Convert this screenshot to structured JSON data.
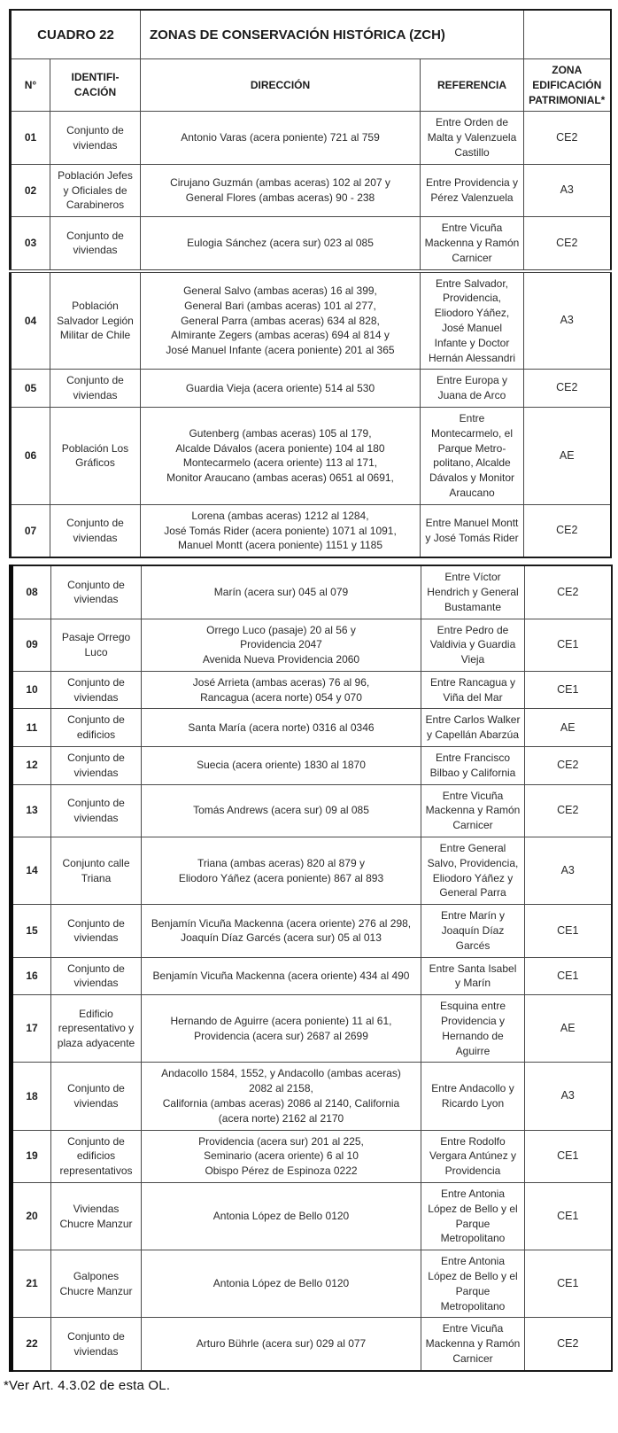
{
  "document": {
    "table_label": "CUADRO 22",
    "title": "ZONAS DE CONSERVACIÓN HISTÓRICA (ZCH)",
    "footnote": "*Ver Art. 4.3.02 de esta OL."
  },
  "colors": {
    "paper": "#ffffff",
    "ink": "#262626",
    "rule": "#4a4a4a"
  },
  "table": {
    "headers": {
      "num": "N°",
      "identificacion": "IDENTIFI-\nCACIÓN",
      "direccion": "DIRECCIÓN",
      "referencia": "REFERENCIA",
      "zona": "ZONA\nEDIFICACIÓN\nPATRIMONIAL*"
    },
    "rows": [
      {
        "num": "01",
        "identificacion": "Conjunto de viviendas",
        "direccion": "Antonio Varas (acera poniente) 721 al 759",
        "referencia": "Entre Orden de Malta y Valenzuela Castillo",
        "zona": "CE2"
      },
      {
        "num": "02",
        "identificacion": "Población Jefes y Oficiales de Carabineros",
        "direccion": "Cirujano Guzmán (ambas aceras) 102 al 207 y\nGeneral Flores (ambas aceras) 90 - 238",
        "referencia": "Entre Providencia y Pérez Valenzuela",
        "zona": "A3"
      },
      {
        "num": "03",
        "identificacion": "Conjunto de viviendas",
        "direccion": "Eulogia Sánchez (acera sur) 023 al 085",
        "referencia": "Entre Vicuña Mackenna y Ramón Carnicer",
        "zona": "CE2"
      },
      {
        "num": "04",
        "identificacion": "Población Salvador Legión Militar de Chile",
        "direccion": "General Salvo (ambas aceras) 16 al 399,\nGeneral Bari (ambas aceras) 101 al 277,\nGeneral Parra (ambas aceras) 634 al 828,\nAlmirante Zegers (ambas aceras) 694 al 814 y\nJosé Manuel Infante (acera poniente) 201 al 365",
        "referencia": "Entre Salvador, Providencia, Eliodoro Yáñez, José Manuel Infante y Doctor Hernán Alessandri",
        "zona": "A3"
      },
      {
        "num": "05",
        "identificacion": "Conjunto de viviendas",
        "direccion": "Guardia Vieja (acera oriente) 514 al 530",
        "referencia": "Entre Europa y Juana de Arco",
        "zona": "CE2"
      },
      {
        "num": "06",
        "identificacion": "Población Los Gráficos",
        "direccion": "Gutenberg (ambas aceras) 105 al 179,\nAlcalde Dávalos (acera poniente) 104 al 180\nMontecarmelo (acera oriente) 113 al 171,\nMonitor Araucano (ambas aceras) 0651 al 0691,",
        "referencia": "Entre\nMontecarmelo, el\nParque Metro-\npolitano, Alcalde\nDávalos y Monitor\nAraucano",
        "zona": "AE"
      },
      {
        "num": "07",
        "identificacion": "Conjunto de viviendas",
        "direccion": "Lorena (ambas aceras) 1212 al 1284,\nJosé Tomás Rider (acera poniente) 1071 al 1091,\nManuel Montt (acera poniente) 1151 y 1185",
        "referencia": "Entre Manuel Montt y José Tomás Rider",
        "zona": "CE2"
      },
      {
        "num": "08",
        "identificacion": "Conjunto de viviendas",
        "direccion": "Marín (acera sur) 045 al 079",
        "referencia": "Entre Víctor Hendrich y General Bustamante",
        "zona": "CE2"
      },
      {
        "num": "09",
        "identificacion": "Pasaje Orrego Luco",
        "direccion": "Orrego Luco (pasaje) 20 al 56 y\nProvidencia 2047\nAvenida Nueva Providencia 2060",
        "referencia": "Entre Pedro de Valdivia y Guardia Vieja",
        "zona": "CE1"
      },
      {
        "num": "10",
        "identificacion": "Conjunto de viviendas",
        "direccion": "José Arrieta (ambas aceras) 76 al 96,\nRancagua (acera norte) 054 y 070",
        "referencia": "Entre Rancagua y Viña del Mar",
        "zona": "CE1"
      },
      {
        "num": "11",
        "identificacion": "Conjunto de edificios",
        "direccion": "Santa María (acera norte) 0316 al 0346",
        "referencia": "Entre Carlos Walker y Capellán Abarzúa",
        "zona": "AE"
      },
      {
        "num": "12",
        "identificacion": "Conjunto de viviendas",
        "direccion": "Suecia (acera oriente) 1830 al 1870",
        "referencia": "Entre Francisco Bilbao y California",
        "zona": "CE2"
      },
      {
        "num": "13",
        "identificacion": "Conjunto de viviendas",
        "direccion": "Tomás Andrews (acera sur) 09 al 085",
        "referencia": "Entre Vicuña Mackenna y Ramón Carnicer",
        "zona": "CE2"
      },
      {
        "num": "14",
        "identificacion": "Conjunto calle Triana",
        "direccion": "Triana (ambas aceras) 820 al 879 y\nEliodoro Yáñez (acera poniente) 867 al 893",
        "referencia": "Entre General Salvo, Providencia, Eliodoro Yáñez y General Parra",
        "zona": "A3"
      },
      {
        "num": "15",
        "identificacion": "Conjunto de viviendas",
        "direccion": "Benjamín Vicuña Mackenna (acera oriente) 276 al 298,\nJoaquín Díaz Garcés (acera sur) 05 al 013",
        "referencia": "Entre Marín y Joaquín Díaz Garcés",
        "zona": "CE1"
      },
      {
        "num": "16",
        "identificacion": "Conjunto de viviendas",
        "direccion": "Benjamín Vicuña Mackenna (acera oriente) 434 al 490",
        "referencia": "Entre Santa Isabel y Marín",
        "zona": "CE1"
      },
      {
        "num": "17",
        "identificacion": "Edificio representativo y plaza adyacente",
        "direccion": "Hernando de Aguirre (acera poniente) 11 al 61,\nProvidencia (acera sur) 2687 al 2699",
        "referencia": "Esquina entre Providencia y Hernando de Aguirre",
        "zona": "AE"
      },
      {
        "num": "18",
        "identificacion": "Conjunto de viviendas",
        "direccion": "Andacollo 1584, 1552, y Andacollo (ambas aceras)\n2082 al 2158,\nCalifornia (ambas aceras) 2086 al 2140, California\n(acera norte) 2162 al 2170",
        "referencia": "Entre Andacollo y Ricardo Lyon",
        "zona": "A3"
      },
      {
        "num": "19",
        "identificacion": "Conjunto de edificios representativos",
        "direccion": "Providencia (acera sur) 201 al 225,\nSeminario (acera oriente) 6 al 10\nObispo Pérez de Espinoza 0222",
        "referencia": "Entre Rodolfo Vergara Antúnez y Providencia",
        "zona": "CE1"
      },
      {
        "num": "20",
        "identificacion": "Viviendas Chucre Manzur",
        "direccion": "Antonia López de Bello 0120",
        "referencia": "Entre Antonia López de Bello y el Parque Metropolitano",
        "zona": "CE1"
      },
      {
        "num": "21",
        "identificacion": "Galpones Chucre Manzur",
        "direccion": "Antonia López de Bello 0120",
        "referencia": "Entre Antonia López de Bello y el Parque Metropolitano",
        "zona": "CE1"
      },
      {
        "num": "22",
        "identificacion": "Conjunto de viviendas",
        "direccion": "Arturo Bührle (acera sur) 029 al 077",
        "referencia": "Entre Vicuña Mackenna y Ramón Carnicer",
        "zona": "CE2"
      }
    ]
  }
}
